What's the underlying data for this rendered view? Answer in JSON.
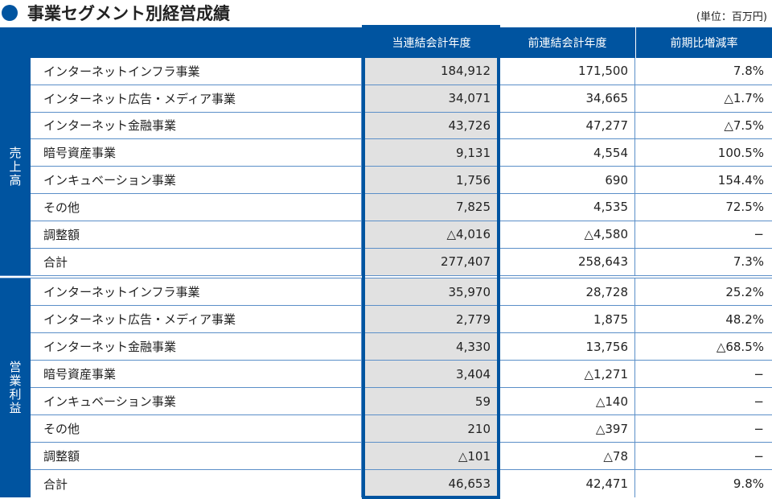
{
  "title": "事業セグメント別経営成績",
  "unit": "(単位：百万円)",
  "columns": [
    "当連結会計年度",
    "前連結会計年度",
    "前期比増減率"
  ],
  "sections": [
    {
      "label": "売上高",
      "rows": [
        {
          "name": "インターネットインフラ事業",
          "current": "184,912",
          "previous": "171,500",
          "ratio": "7.8%"
        },
        {
          "name": "インターネット広告・メディア事業",
          "current": "34,071",
          "previous": "34,665",
          "ratio": "△1.7%"
        },
        {
          "name": "インターネット金融事業",
          "current": "43,726",
          "previous": "47,277",
          "ratio": "△7.5%"
        },
        {
          "name": "暗号資産事業",
          "current": "9,131",
          "previous": "4,554",
          "ratio": "100.5%"
        },
        {
          "name": "インキュベーション事業",
          "current": "1,756",
          "previous": "690",
          "ratio": "154.4%"
        },
        {
          "name": "その他",
          "current": "7,825",
          "previous": "4,535",
          "ratio": "72.5%"
        },
        {
          "name": "調整額",
          "current": "△4,016",
          "previous": "△4,580",
          "ratio": "−"
        },
        {
          "name": "合計",
          "current": "277,407",
          "previous": "258,643",
          "ratio": "7.3%"
        }
      ]
    },
    {
      "label": "営業利益",
      "rows": [
        {
          "name": "インターネットインフラ事業",
          "current": "35,970",
          "previous": "28,728",
          "ratio": "25.2%"
        },
        {
          "name": "インターネット広告・メディア事業",
          "current": "2,779",
          "previous": "1,875",
          "ratio": "48.2%"
        },
        {
          "name": "インターネット金融事業",
          "current": "4,330",
          "previous": "13,756",
          "ratio": "△68.5%"
        },
        {
          "name": "暗号資産事業",
          "current": "3,404",
          "previous": "△1,271",
          "ratio": "−"
        },
        {
          "name": "インキュベーション事業",
          "current": "59",
          "previous": "△140",
          "ratio": "−"
        },
        {
          "name": "その他",
          "current": "210",
          "previous": "△397",
          "ratio": "−"
        },
        {
          "name": "調整額",
          "current": "△101",
          "previous": "△78",
          "ratio": "−"
        },
        {
          "name": "合計",
          "current": "46,653",
          "previous": "42,471",
          "ratio": "9.8%"
        }
      ]
    }
  ]
}
